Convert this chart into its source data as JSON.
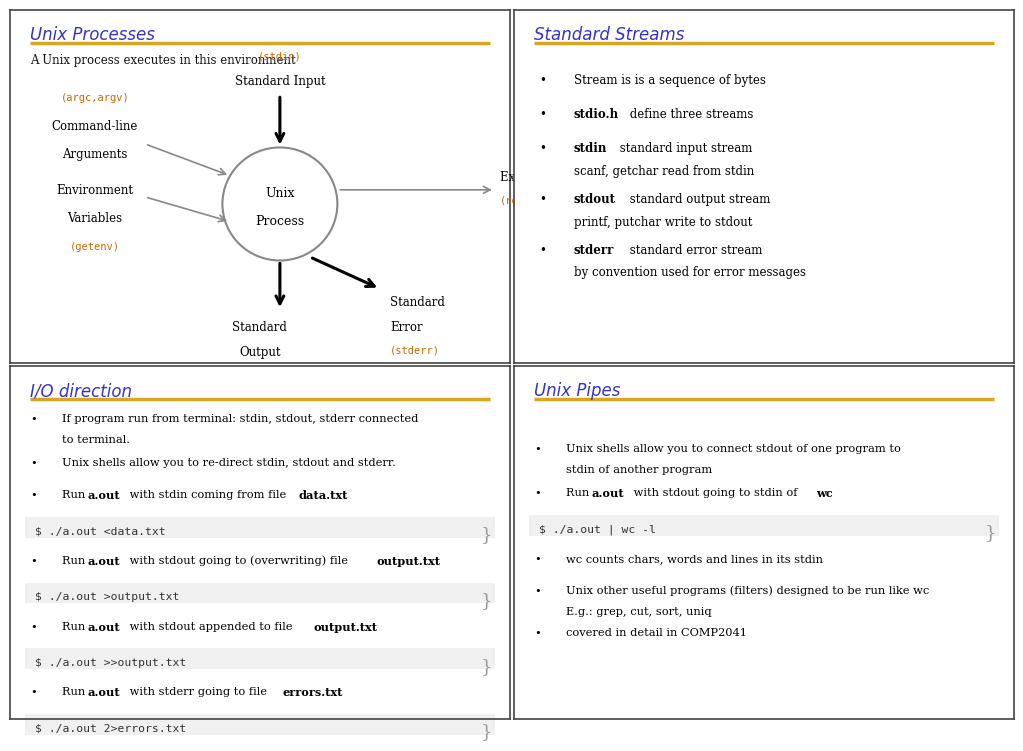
{
  "title_color": "#3333cc",
  "gold_color": "#DAA520",
  "orange_color": "#CC6600",
  "black_color": "#111111",
  "bg_color": "#ffffff",
  "border_color": "#444444",
  "panel1_title": "Unix Processes",
  "panel1_subtitle": "A Unix process executes in this environment",
  "panel2_title": "Standard Streams",
  "panel3_title": "I/O direction",
  "panel3_codes": [
    "$ ./a.out <data.txt",
    "$ ./a.out >output.txt",
    "$ ./a.out >>output.txt",
    "$ ./a.out 2>errors.txt"
  ],
  "panel4_title": "Unix Pipes",
  "panel4_code": "$ ./a.out | wc -l"
}
